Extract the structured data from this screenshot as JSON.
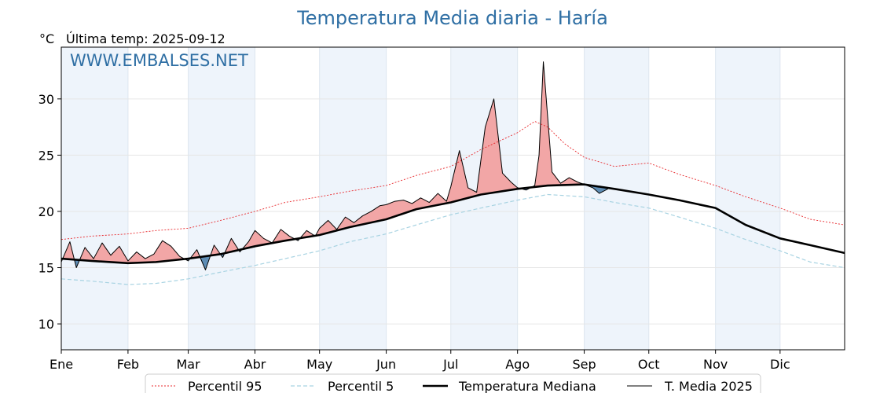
{
  "chart_data": {
    "type": "line",
    "title": "Temperatura Media diaria - Haría",
    "unit": "°C",
    "last_update": "Última temp: 2025-09-12",
    "watermark": "WWW.EMBALSES.NET",
    "x_ticks": [
      "Ene",
      "Feb",
      "Mar",
      "Abr",
      "May",
      "Jun",
      "Jul",
      "Ago",
      "Sep",
      "Oct",
      "Nov",
      "Dic"
    ],
    "y_ticks": [
      10,
      15,
      20,
      25,
      30
    ],
    "ylim": [
      7.7,
      34.6
    ],
    "x_range_days": [
      1,
      365
    ],
    "grid": true,
    "legend_position": "bottom-center",
    "colors": {
      "p95": "#e8282c",
      "p5": "#a8d3e2",
      "median": "#000000",
      "t2025": "#000000",
      "above_fill": "#f2a6a6",
      "below_fill": "#5e8db5",
      "month_band": "#eef4fb"
    },
    "series": [
      {
        "name": "Percentil 95",
        "key": "p95",
        "x": [
          1,
          15,
          32,
          45,
          60,
          75,
          91,
          105,
          121,
          135,
          152,
          166,
          182,
          196,
          213,
          221,
          227,
          235,
          244,
          258,
          274,
          288,
          305,
          319,
          335,
          349,
          365
        ],
        "y": [
          17.5,
          17.8,
          18.0,
          18.3,
          18.5,
          19.2,
          20.0,
          20.8,
          21.3,
          21.8,
          22.3,
          23.2,
          24.0,
          25.5,
          27.0,
          28.0,
          27.5,
          26.0,
          24.8,
          24.0,
          24.3,
          23.3,
          22.3,
          21.3,
          20.3,
          19.3,
          18.8
        ]
      },
      {
        "name": "Percentil 5",
        "key": "p5",
        "x": [
          1,
          15,
          32,
          45,
          60,
          75,
          91,
          105,
          121,
          135,
          152,
          166,
          182,
          196,
          213,
          227,
          244,
          258,
          274,
          288,
          305,
          319,
          335,
          349,
          365
        ],
        "y": [
          14.0,
          13.8,
          13.5,
          13.6,
          14.0,
          14.6,
          15.2,
          15.8,
          16.5,
          17.3,
          18.0,
          18.8,
          19.7,
          20.3,
          21.0,
          21.5,
          21.3,
          20.8,
          20.3,
          19.5,
          18.5,
          17.5,
          16.5,
          15.5,
          15.0
        ]
      },
      {
        "name": "Temperatura Mediana",
        "key": "median",
        "x": [
          1,
          15,
          32,
          45,
          60,
          75,
          91,
          105,
          121,
          135,
          152,
          166,
          182,
          196,
          213,
          227,
          244,
          258,
          274,
          288,
          305,
          319,
          335,
          349,
          365
        ],
        "y": [
          15.8,
          15.6,
          15.4,
          15.5,
          15.8,
          16.2,
          16.9,
          17.4,
          17.9,
          18.6,
          19.3,
          20.2,
          20.8,
          21.5,
          22.0,
          22.3,
          22.4,
          22.0,
          21.5,
          21.0,
          20.3,
          18.8,
          17.6,
          17.0,
          16.3
        ]
      },
      {
        "name": "T. Media 2025",
        "key": "t2025",
        "x": [
          1,
          5,
          8,
          12,
          16,
          20,
          24,
          28,
          32,
          36,
          40,
          44,
          48,
          52,
          56,
          60,
          64,
          68,
          72,
          76,
          80,
          84,
          88,
          91,
          95,
          99,
          103,
          107,
          111,
          115,
          119,
          121,
          125,
          129,
          133,
          137,
          141,
          145,
          149,
          152,
          156,
          160,
          164,
          168,
          172,
          176,
          180,
          182,
          186,
          190,
          194,
          198,
          202,
          206,
          210,
          213,
          217,
          221,
          223,
          225,
          229,
          233,
          237,
          241,
          244,
          248,
          251,
          255
        ],
        "y": [
          15.5,
          17.3,
          15.0,
          16.8,
          15.8,
          17.2,
          16.1,
          16.9,
          15.6,
          16.4,
          15.8,
          16.2,
          17.4,
          16.9,
          16.0,
          15.6,
          16.6,
          14.8,
          17.0,
          15.9,
          17.6,
          16.4,
          17.3,
          18.3,
          17.6,
          17.2,
          18.4,
          17.8,
          17.4,
          18.3,
          17.8,
          18.5,
          19.2,
          18.4,
          19.5,
          19.0,
          19.6,
          20.0,
          20.5,
          20.6,
          20.9,
          21.0,
          20.7,
          21.2,
          20.8,
          21.6,
          20.9,
          22.2,
          25.4,
          22.1,
          21.7,
          27.5,
          30.0,
          23.4,
          22.6,
          22.1,
          21.9,
          22.3,
          25.0,
          33.3,
          23.5,
          22.5,
          23.0,
          22.6,
          22.4,
          22.1,
          21.6,
          22.0
        ]
      }
    ]
  }
}
